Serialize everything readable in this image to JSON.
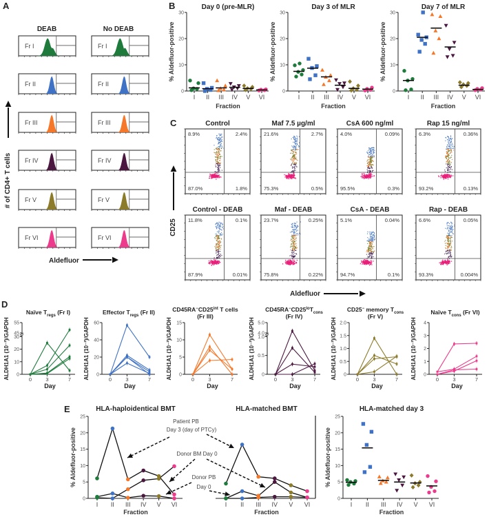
{
  "panel_labels": [
    "A",
    "B",
    "C",
    "D",
    "E"
  ],
  "colors": {
    "fractions": [
      "#1e7b3c",
      "#3f72c4",
      "#f5782a",
      "#4b1740",
      "#8c7b2b",
      "#ec3b8c"
    ],
    "flow": {
      "pink": "#e8207a",
      "purple": "#4a2a5a",
      "orange": "#e8742c",
      "green": "#6a8a3a",
      "blue": "#4a78c0"
    },
    "axis": "#222222"
  },
  "chart_data": [
    {
      "type": "histogram",
      "panel": "A",
      "column_headers": [
        "DEAB",
        "No DEAB"
      ],
      "row_labels": [
        "Fr I",
        "Fr II",
        "Fr III",
        "Fr IV",
        "Fr V",
        "Fr VI"
      ],
      "ylabel": "# of CD4+ T cells",
      "xlabel": "Aldefluor"
    },
    {
      "type": "scatter",
      "panel": "B",
      "title": "Day 0 (pre-MLR)",
      "xlabel": "Fraction",
      "ylabel": "% Aldefluor-positive",
      "ylim": [
        0,
        30
      ],
      "yticks": [
        0,
        10,
        20,
        30
      ],
      "ytick_labels": [
        "0",
        "10",
        "20",
        "30"
      ],
      "categories": [
        "I",
        "II",
        "III",
        "IV",
        "V",
        "VI"
      ],
      "series": [
        {
          "name": "I",
          "values": [
            0.3,
            0.8,
            1,
            3,
            4
          ],
          "mean": 1.2
        },
        {
          "name": "II",
          "values": [
            0,
            0.4,
            0.8,
            1.2,
            3
          ],
          "mean": 0.9
        },
        {
          "name": "III",
          "values": [
            0.2,
            0.5,
            1,
            2,
            4
          ],
          "mean": 1.2
        },
        {
          "name": "IV",
          "values": [
            0.5,
            1,
            1.5,
            2,
            2.8
          ],
          "mean": 1.4
        },
        {
          "name": "V",
          "values": [
            0.4,
            0.8,
            1,
            1.5,
            2
          ],
          "mean": 1
        },
        {
          "name": "VI",
          "values": [
            0.2,
            0.3,
            0.5,
            0.6
          ],
          "mean": 0.4
        }
      ]
    },
    {
      "type": "scatter",
      "panel": "B",
      "title": "Day 3 of MLR",
      "xlabel": "Fraction",
      "ylabel": "% Aldefluor-positive",
      "ylim": [
        0,
        30
      ],
      "yticks": [
        0,
        10,
        20,
        30
      ],
      "ytick_labels": [
        "0",
        "10",
        "20",
        "30"
      ],
      "categories": [
        "I",
        "II",
        "III",
        "IV",
        "V",
        "VI"
      ],
      "series": [
        {
          "name": "I",
          "values": [
            5.5,
            6.3,
            7.3,
            8,
            9.8,
            10.5
          ],
          "mean": 7.5
        },
        {
          "name": "II",
          "values": [
            4.5,
            6,
            8.8,
            9.5,
            12.3
          ],
          "mean": 8.7
        },
        {
          "name": "III",
          "values": [
            2.5,
            4,
            5.3,
            6,
            8
          ],
          "mean": 5.4
        },
        {
          "name": "IV",
          "values": [
            0.5,
            1.5,
            2.8,
            3,
            4.2
          ],
          "mean": 2.2
        },
        {
          "name": "V",
          "values": [
            0.2,
            0.5,
            1,
            2,
            3.6
          ],
          "mean": 1
        },
        {
          "name": "VI",
          "values": [
            0.2,
            0.4,
            0.8,
            1.3
          ],
          "mean": 0.7
        }
      ]
    },
    {
      "type": "scatter",
      "panel": "B",
      "title": "Day 7 of MLR",
      "xlabel": "Fraction",
      "ylabel": "% Aldefluor-positive",
      "ylim": [
        0,
        30
      ],
      "yticks": [
        0,
        10,
        20,
        30
      ],
      "ytick_labels": [
        "0",
        "10",
        "20",
        "30"
      ],
      "categories": [
        "I",
        "II",
        "III",
        "IV",
        "V",
        "VI"
      ],
      "series": [
        {
          "name": "I",
          "values": [
            0.3,
            0.6,
            4,
            4.6,
            7.7
          ],
          "mean": 4
        },
        {
          "name": "II",
          "values": [
            15,
            18,
            19.5,
            20.5,
            21.5,
            30
          ],
          "mean": 20.5
        },
        {
          "name": "III",
          "values": [
            14.5,
            20,
            23,
            28.5,
            29.2
          ],
          "mean": 24
        },
        {
          "name": "IV",
          "values": [
            13,
            13.5,
            16,
            18.5,
            25
          ],
          "mean": 16.8
        },
        {
          "name": "V",
          "values": [
            1.5,
            2,
            2.5,
            3,
            3.3
          ],
          "mean": 2.2
        },
        {
          "name": "VI",
          "values": [
            0.3,
            0.5,
            0.8,
            1.1
          ],
          "mean": 0.6
        }
      ]
    },
    {
      "type": "scatter",
      "panel": "C",
      "subtype": "flow-cytometry",
      "xlabel": "Aldefluor",
      "ylabel": "CD25",
      "plots": [
        {
          "title": "Control",
          "quadrants": {
            "upper_left": "8.9%",
            "upper_right": "2.4%",
            "lower_left": "87.0%",
            "lower_right": "1.8%"
          }
        },
        {
          "title": "Maf 7.5 µg/ml",
          "quadrants": {
            "upper_left": "21.6%",
            "upper_right": "2.7%",
            "lower_left": "75.3%",
            "lower_right": "0.5%"
          }
        },
        {
          "title": "CsA 600 ng/ml",
          "quadrants": {
            "upper_left": "4.0%",
            "upper_right": "0.09%",
            "lower_left": "95.5%",
            "lower_right": "0.3%"
          }
        },
        {
          "title": "Rap 15 ng/ml",
          "quadrants": {
            "upper_left": "6.3%",
            "upper_right": "0.36%",
            "lower_left": "93.2%",
            "lower_right": "0.13%"
          }
        },
        {
          "title": "Control - DEAB",
          "quadrants": {
            "upper_left": "11.8%",
            "upper_right": "0.1%",
            "lower_left": "87.9%",
            "lower_right": "0.01%"
          }
        },
        {
          "title": "Maf - DEAB",
          "quadrants": {
            "upper_left": "23.7%",
            "upper_right": "0.25%",
            "lower_left": "75.8%",
            "lower_right": "0.22%"
          }
        },
        {
          "title": "CsA - DEAB",
          "quadrants": {
            "upper_left": "5.1%",
            "upper_right": "0.04%",
            "lower_left": "94.7%",
            "lower_right": "0.1%"
          }
        },
        {
          "title": "Rap - DEAB",
          "quadrants": {
            "upper_left": "6.6%",
            "upper_right": "0.05%",
            "lower_left": "93.3%",
            "lower_right": "0.004%"
          }
        }
      ]
    },
    {
      "type": "line",
      "panel": "D",
      "color_index": 0,
      "title_lines": [
        [
          {
            "t": "Naïve T"
          },
          {
            "t": "regs",
            "sub": true
          },
          {
            "t": " (Fr I)"
          }
        ]
      ],
      "xlabel": "Day",
      "ylabel": "ALDH1A1 (10⁻²)/GAPDH",
      "x": [
        0,
        3,
        7
      ],
      "xtick_labels": [
        "0",
        "3",
        "7"
      ],
      "ylim": [
        0,
        55
      ],
      "yticks": [
        0,
        10,
        20,
        30,
        45,
        55
      ],
      "ytick_labels": [
        "0",
        "10",
        "20",
        "30",
        "45",
        "55"
      ],
      "axis_break": [
        30,
        45
      ],
      "series": [
        {
          "values": [
            0,
            25,
            3
          ]
        },
        {
          "values": [
            0,
            7,
            48
          ]
        },
        {
          "values": [
            0,
            4,
            23
          ]
        },
        {
          "values": [
            0,
            1,
            14
          ]
        },
        {
          "values": [
            0,
            0.5,
            12.5
          ]
        }
      ]
    },
    {
      "type": "line",
      "panel": "D",
      "color_index": 1,
      "title_lines": [
        [
          {
            "t": "Effector T"
          },
          {
            "t": "regs",
            "sub": true
          },
          {
            "t": " (Fr II)"
          }
        ]
      ],
      "xlabel": "Day",
      "ylabel": "ALDH1A1 (10⁻²)/GAPDH",
      "x": [
        0,
        3,
        7
      ],
      "xtick_labels": [
        "0",
        "3",
        "7"
      ],
      "ylim": [
        0,
        60
      ],
      "yticks": [
        0,
        20,
        40,
        60
      ],
      "ytick_labels": [
        "0",
        "20",
        "40",
        "60"
      ],
      "series": [
        {
          "values": [
            0,
            57,
            20
          ]
        },
        {
          "values": [
            0,
            22,
            5
          ]
        },
        {
          "values": [
            0,
            20,
            3
          ]
        },
        {
          "values": [
            0,
            13,
            1
          ]
        },
        {
          "values": [
            0,
            20,
            0
          ]
        }
      ]
    },
    {
      "type": "line",
      "panel": "D",
      "color_index": 2,
      "title_lines": [
        [
          {
            "t": "CD45RA"
          },
          {
            "t": "−",
            "sup": true
          },
          {
            "t": "CD25"
          },
          {
            "t": "int",
            "sup": true
          },
          {
            "t": " T cells"
          }
        ],
        [
          {
            "t": "(Fr III)"
          }
        ]
      ],
      "xlabel": "Day",
      "ylabel": "ALDH1A1 (10⁻²)/GAPDH",
      "x": [
        0,
        3,
        7
      ],
      "xtick_labels": [
        "0",
        "3",
        "7"
      ],
      "ylim": [
        0,
        15
      ],
      "yticks": [
        0,
        5,
        10,
        15
      ],
      "ytick_labels": [
        "0",
        "5",
        "10",
        "15"
      ],
      "series": [
        {
          "values": [
            0,
            11.5,
            1.5
          ]
        },
        {
          "values": [
            0,
            8,
            0
          ]
        },
        {
          "values": [
            0,
            7,
            1.5
          ]
        },
        {
          "values": [
            0,
            4,
            4.3
          ]
        }
      ]
    },
    {
      "type": "line",
      "panel": "D",
      "color_index": 3,
      "title_lines": [
        [
          {
            "t": "CD45RA"
          },
          {
            "t": "−",
            "sup": true
          },
          {
            "t": "CD25"
          },
          {
            "t": "lo",
            "sup": true
          },
          {
            "t": "T"
          },
          {
            "t": "cons",
            "sub": true
          }
        ],
        [
          {
            "t": "(Fr IV)"
          }
        ]
      ],
      "xlabel": "Day",
      "ylabel": "ALDH1A1 (10⁻²)/GAPDH",
      "x": [
        0,
        3,
        7
      ],
      "xtick_labels": [
        "0",
        "3",
        "7"
      ],
      "ylim": [
        0,
        5
      ],
      "yticks": [
        0,
        0.5,
        1,
        4,
        5
      ],
      "ytick_labels": [
        "0",
        "0.5",
        "1.0",
        "4.0",
        "5.0"
      ],
      "axis_break": [
        1,
        4
      ],
      "series": [
        {
          "values": [
            0,
            4.2,
            0.1
          ]
        },
        {
          "values": [
            0,
            0.7,
            0.05
          ]
        },
        {
          "values": [
            0,
            0.27,
            0.2
          ]
        },
        {
          "values": [
            0,
            0,
            0.28
          ]
        }
      ]
    },
    {
      "type": "line",
      "panel": "D",
      "color_index": 4,
      "title_lines": [
        [
          {
            "t": "CD25"
          },
          {
            "t": "−",
            "sup": true
          },
          {
            "t": " memory T"
          },
          {
            "t": "cons",
            "sub": true
          }
        ],
        [
          {
            "t": "(Fr V)"
          }
        ]
      ],
      "xlabel": "Day",
      "ylabel": "ALDH1A1 (10⁻²)/GAPDH",
      "x": [
        0,
        3,
        7
      ],
      "xtick_labels": [
        "0",
        "3",
        "7"
      ],
      "ylim": [
        0,
        2
      ],
      "yticks": [
        0,
        0.5,
        1,
        1.5,
        2
      ],
      "ytick_labels": [
        "0",
        "0.5",
        "1.0",
        "1.5",
        "2.0"
      ],
      "series": [
        {
          "values": [
            0,
            1.4,
            0
          ]
        },
        {
          "values": [
            0,
            0.73,
            0.4
          ]
        },
        {
          "values": [
            0,
            0.6,
            0.68
          ]
        },
        {
          "values": [
            0,
            0.1,
            0.7
          ]
        }
      ]
    },
    {
      "type": "line",
      "panel": "D",
      "color_index": 5,
      "title_lines": [
        [
          {
            "t": "Naïve T"
          },
          {
            "t": "cons",
            "sub": true
          },
          {
            "t": " (Fr VI)"
          }
        ]
      ],
      "xlabel": "Day",
      "ylabel": "ALDH1A1 (10⁻²)/GAPDH",
      "x": [
        0,
        3,
        7
      ],
      "xtick_labels": [
        "0",
        "3",
        "7"
      ],
      "ylim": [
        0,
        4
      ],
      "yticks": [
        0,
        1,
        2,
        3,
        4
      ],
      "ytick_labels": [
        "0",
        "1",
        "2",
        "3",
        "4"
      ],
      "series": [
        {
          "values": [
            0.2,
            2.35,
            2.4
          ]
        },
        {
          "values": [
            0.2,
            0.4,
            1.4
          ]
        },
        {
          "values": [
            0,
            0.25,
            1.05
          ]
        },
        {
          "values": [
            0,
            0.35,
            0.4
          ]
        }
      ]
    },
    {
      "type": "line",
      "panel": "E",
      "title": "HLA-haploidentical BMT",
      "xlabel": "Fraction",
      "ylabel": "% Aldefluor-positive",
      "categories": [
        "I",
        "II",
        "III",
        "IV",
        "V",
        "VI"
      ],
      "ylim": [
        0,
        25
      ],
      "yticks": [
        0,
        5,
        10,
        15,
        20,
        25
      ],
      "ytick_labels": [
        "0",
        "5",
        "10",
        "15",
        "20",
        "25"
      ],
      "series": [
        {
          "name": "Patient PB Day 3 (day of PTCy)",
          "values": [
            6.1,
            21.3,
            5.8,
            8.5,
            6.8,
            1.2
          ]
        },
        {
          "name": "Donor BM Day 0",
          "values": [
            0.2,
            0,
            2.8,
            5.5,
            6,
            9.8
          ]
        },
        {
          "name": "Donor PB Day 0",
          "values": [
            0.5,
            1.5,
            0.2,
            0.8,
            0.7,
            0
          ]
        }
      ],
      "annotations": [
        "Patient PB",
        "Day 3 (day of PTCy)",
        "Donor BM Day 0",
        "Donor PB",
        "Day 0"
      ]
    },
    {
      "type": "line",
      "panel": "E",
      "title": "HLA-matched BMT",
      "xlabel": "Fraction",
      "categories": [
        "I",
        "II",
        "III",
        "IV",
        "V",
        "VI"
      ],
      "ylim": [
        0,
        25
      ],
      "series": [
        {
          "name": "Patient PB Day 3 (day of PTCy)",
          "values": [
            4.5,
            16.4,
            6.6,
            6.1,
            4,
            2.2
          ]
        },
        {
          "name": "Donor BM Day 0",
          "values": [
            0,
            2.2,
            0.8,
            5,
            1.8,
            0.3
          ]
        },
        {
          "name": "Donor PB Day 0",
          "values": [
            0,
            0,
            0.3,
            0.5,
            0.5,
            0.3
          ]
        }
      ]
    },
    {
      "type": "scatter",
      "panel": "E",
      "title": "HLA-matched day 3",
      "xlabel": "Fraction",
      "ylabel": "% Aldefluor-positive",
      "ylim": [
        0,
        25
      ],
      "yticks": [
        0,
        5,
        10,
        15,
        20,
        25
      ],
      "ytick_labels": [
        "0",
        "5",
        "10",
        "15",
        "20",
        "25"
      ],
      "categories": [
        "I",
        "II",
        "III",
        "IV",
        "V",
        "VI"
      ],
      "series": [
        {
          "name": "I",
          "values": [
            4.1,
            4.5,
            5,
            5.3,
            5.6
          ],
          "mean": 4.9
        },
        {
          "name": "II",
          "values": [
            8,
            9.6,
            16.3,
            20.3,
            22.7
          ],
          "mean": 15.4
        },
        {
          "name": "III",
          "values": [
            4.6,
            5,
            5.4,
            6.3,
            6.6
          ],
          "mean": 5.5
        },
        {
          "name": "IV",
          "values": [
            2.4,
            4,
            5.6,
            6.5,
            7.4
          ],
          "mean": 5
        },
        {
          "name": "V",
          "values": [
            3.4,
            4,
            4.6,
            5,
            7
          ],
          "mean": 4.7
        },
        {
          "name": "VI",
          "values": [
            1.8,
            2.2,
            3.5,
            5.2,
            6.8
          ],
          "mean": 3.8
        }
      ]
    }
  ]
}
